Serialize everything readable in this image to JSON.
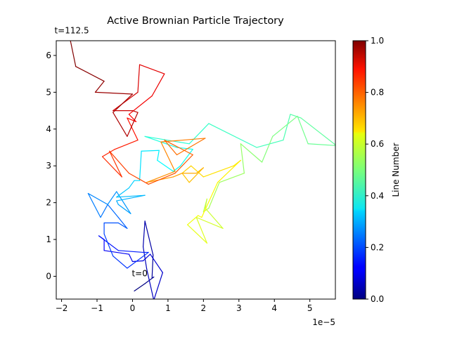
{
  "chart_data": {
    "type": "line",
    "title": "Active Brownian Particle Trajectory",
    "x_offset_label": "1e−5",
    "x_scale": 1e-05,
    "xlim": [
      -2.15,
      5.72
    ],
    "ylim": [
      -0.62,
      6.4
    ],
    "x_ticks": [
      -2,
      -1,
      0,
      1,
      2,
      3,
      4,
      5
    ],
    "x_tick_labels": [
      "−2",
      "−1",
      "0",
      "1",
      "2",
      "3",
      "4",
      "5"
    ],
    "y_ticks": [
      0,
      1,
      2,
      3,
      4,
      5,
      6
    ],
    "y_tick_labels": [
      "0",
      "1",
      "2",
      "3",
      "4",
      "5",
      "6"
    ],
    "grid": false,
    "annotations": [
      {
        "text": "t=0",
        "x": -0.02,
        "y": 0.08
      },
      {
        "text": "t=112.5",
        "x": -2.2,
        "y": 6.68
      }
    ],
    "colorbar": {
      "label": "Line Number",
      "colormap": "jet",
      "range": [
        0.0,
        1.0
      ],
      "ticks": [
        0.0,
        0.2,
        0.4,
        0.6,
        0.8,
        1.0
      ],
      "tick_labels": [
        "0.0",
        "0.2",
        "0.4",
        "0.6",
        "0.8",
        "1.0"
      ]
    },
    "points": [
      [
        0.05,
        -0.4
      ],
      [
        0.35,
        -0.2
      ],
      [
        0.6,
        -0.02
      ],
      [
        0.55,
        -0.05
      ],
      [
        0.58,
        0.58
      ],
      [
        0.35,
        1.5
      ],
      [
        0.3,
        0.8
      ],
      [
        0.4,
        0.2
      ],
      [
        0.6,
        -0.65
      ],
      [
        0.85,
        0.1
      ],
      [
        0.5,
        0.6
      ],
      [
        0.3,
        0.42
      ],
      [
        0.0,
        0.4
      ],
      [
        -0.1,
        0.6
      ],
      [
        -0.8,
        0.7
      ],
      [
        -0.8,
        1.0
      ],
      [
        -0.95,
        1.1
      ],
      [
        -0.4,
        0.7
      ],
      [
        0.3,
        0.65
      ],
      [
        0.45,
        0.65
      ],
      [
        -0.15,
        0.22
      ],
      [
        -0.55,
        0.55
      ],
      [
        -0.8,
        1.15
      ],
      [
        -0.8,
        1.45
      ],
      [
        -0.4,
        1.45
      ],
      [
        -0.15,
        1.3
      ],
      [
        -0.4,
        1.6
      ],
      [
        -0.7,
        1.95
      ],
      [
        -0.9,
        1.6
      ],
      [
        -1.25,
        2.25
      ],
      [
        -0.7,
        1.95
      ],
      [
        -0.45,
        2.3
      ],
      [
        -0.05,
        1.7
      ],
      [
        -0.4,
        1.95
      ],
      [
        -0.45,
        2.05
      ],
      [
        0.35,
        2.2
      ],
      [
        -0.45,
        2.15
      ],
      [
        -0.1,
        2.4
      ],
      [
        0.05,
        2.6
      ],
      [
        0.2,
        2.6
      ],
      [
        0.25,
        3.4
      ],
      [
        0.75,
        3.42
      ],
      [
        0.7,
        3.15
      ],
      [
        1.15,
        2.85
      ],
      [
        1.35,
        3.0
      ],
      [
        1.7,
        3.45
      ],
      [
        1.25,
        3.5
      ],
      [
        0.35,
        3.8
      ],
      [
        1.6,
        3.6
      ],
      [
        2.15,
        4.15
      ],
      [
        3.5,
        3.5
      ],
      [
        4.25,
        3.7
      ],
      [
        4.45,
        4.4
      ],
      [
        4.75,
        4.3
      ],
      [
        5.75,
        3.55
      ],
      [
        4.95,
        3.6
      ],
      [
        4.65,
        4.35
      ],
      [
        3.95,
        3.8
      ],
      [
        3.65,
        3.1
      ],
      [
        3.05,
        3.6
      ],
      [
        3.15,
        2.8
      ],
      [
        2.45,
        2.55
      ],
      [
        2.15,
        1.85
      ],
      [
        2.0,
        1.75
      ],
      [
        2.1,
        2.1
      ],
      [
        2.05,
        1.85
      ],
      [
        2.55,
        1.3
      ],
      [
        1.8,
        1.6
      ],
      [
        2.1,
        0.9
      ],
      [
        1.55,
        1.4
      ],
      [
        1.85,
        1.65
      ],
      [
        1.95,
        1.6
      ],
      [
        2.4,
        2.55
      ],
      [
        3.05,
        3.15
      ],
      [
        2.85,
        3.0
      ],
      [
        2.0,
        2.7
      ],
      [
        1.65,
        3.0
      ],
      [
        1.4,
        2.8
      ],
      [
        1.6,
        2.55
      ],
      [
        2.0,
        2.95
      ],
      [
        1.8,
        2.8
      ],
      [
        1.4,
        2.8
      ],
      [
        1.15,
        2.7
      ],
      [
        0.4,
        2.55
      ],
      [
        1.2,
        2.85
      ],
      [
        0.8,
        3.65
      ],
      [
        2.05,
        3.75
      ],
      [
        1.25,
        3.3
      ],
      [
        0.9,
        3.7
      ],
      [
        1.7,
        3.3
      ],
      [
        1.2,
        2.8
      ],
      [
        0.45,
        2.5
      ],
      [
        -0.1,
        2.8
      ],
      [
        -0.65,
        3.4
      ],
      [
        -0.3,
        2.7
      ],
      [
        -0.85,
        3.25
      ],
      [
        -0.5,
        3.45
      ],
      [
        0.15,
        3.7
      ],
      [
        -0.15,
        4.3
      ],
      [
        0.1,
        4.2
      ],
      [
        -0.1,
        4.4
      ],
      [
        0.55,
        4.9
      ],
      [
        0.9,
        5.5
      ],
      [
        0.2,
        5.75
      ],
      [
        0.15,
        5.0
      ],
      [
        -0.55,
        4.5
      ],
      [
        0.0,
        4.5
      ],
      [
        0.15,
        4.45
      ],
      [
        -0.15,
        3.8
      ],
      [
        -0.55,
        4.45
      ],
      [
        0.0,
        4.95
      ],
      [
        -1.05,
        5.0
      ],
      [
        -0.8,
        5.3
      ],
      [
        -1.6,
        5.7
      ],
      [
        -1.75,
        6.4
      ]
    ]
  }
}
